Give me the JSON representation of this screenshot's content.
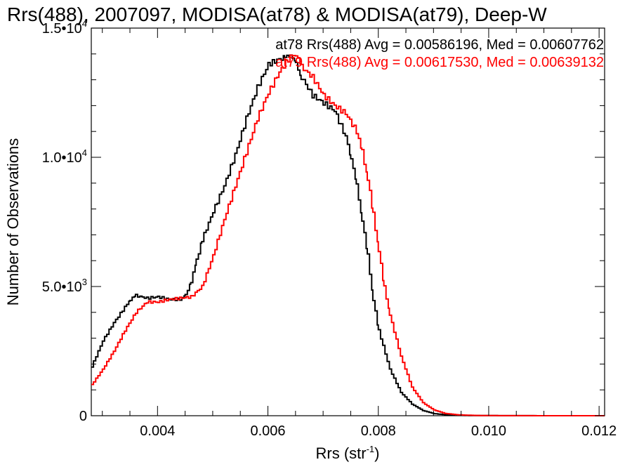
{
  "chart_data": {
    "type": "line",
    "title": "Rrs(488), 2007097, MODISA(at78) & MODISA(at79), Deep-W",
    "xlabel_main": "Rrs (str",
    "xlabel_sup": "-1",
    "xlabel_close": ")",
    "ylabel": "Number of Observations",
    "xlim": [
      0.0028,
      0.0121
    ],
    "ylim": [
      0,
      15000
    ],
    "x_ticks": [
      {
        "value": 0.004,
        "label": "0.004"
      },
      {
        "value": 0.006,
        "label": "0.006"
      },
      {
        "value": 0.008,
        "label": "0.008"
      },
      {
        "value": 0.01,
        "label": "0.010"
      },
      {
        "value": 0.012,
        "label": "0.012"
      }
    ],
    "y_ticks": [
      {
        "value": 0,
        "mant": "0",
        "exp": ""
      },
      {
        "value": 5000,
        "mant": "5.0•10",
        "exp": "3"
      },
      {
        "value": 10000,
        "mant": "1.0•10",
        "exp": "4"
      },
      {
        "value": 15000,
        "mant": "1.5•10",
        "exp": "4"
      }
    ],
    "annotations": [
      {
        "text": "at78 Rrs(488) Avg = 0.00586196, Med = 0.00607762",
        "color": "#000000"
      },
      {
        "text": "at79 Rrs(488) Avg = 0.00617530, Med = 0.00639132",
        "color": "#ff0000"
      }
    ],
    "series": [
      {
        "color": "#000000",
        "x": [
          0.0028,
          0.003,
          0.0032,
          0.0034,
          0.0035,
          0.0036,
          0.0038,
          0.004,
          0.0042,
          0.0044,
          0.0045,
          0.0046,
          0.0047,
          0.0048,
          0.005,
          0.0052,
          0.0054,
          0.0056,
          0.0058,
          0.006,
          0.0062,
          0.0063,
          0.0064,
          0.0065,
          0.0066,
          0.0068,
          0.007,
          0.0072,
          0.0074,
          0.0075,
          0.0076,
          0.0077,
          0.0078,
          0.0079,
          0.008,
          0.0082,
          0.0084,
          0.0086,
          0.0088,
          0.009,
          0.0092,
          0.0094,
          0.0096,
          0.01,
          0.0105,
          0.011,
          0.0121
        ],
        "y": [
          1900,
          2900,
          3600,
          4200,
          4500,
          4650,
          4550,
          4600,
          4500,
          4500,
          4650,
          5200,
          6000,
          6800,
          7900,
          8900,
          10100,
          11500,
          12700,
          13600,
          13800,
          13850,
          14000,
          13600,
          13100,
          12400,
          12100,
          11800,
          10800,
          10000,
          8900,
          7600,
          6200,
          4500,
          3300,
          1800,
          900,
          450,
          200,
          80,
          40,
          20,
          10,
          5,
          2,
          1,
          0
        ]
      },
      {
        "color": "#ff0000",
        "x": [
          0.0028,
          0.003,
          0.0032,
          0.0034,
          0.0036,
          0.0038,
          0.004,
          0.0042,
          0.0044,
          0.0046,
          0.0048,
          0.005,
          0.0052,
          0.0054,
          0.0056,
          0.0058,
          0.006,
          0.0062,
          0.0064,
          0.0065,
          0.0066,
          0.0068,
          0.007,
          0.0072,
          0.0074,
          0.0076,
          0.0077,
          0.0078,
          0.0079,
          0.008,
          0.0081,
          0.0082,
          0.0084,
          0.0086,
          0.0088,
          0.009,
          0.0092,
          0.0094,
          0.0096,
          0.0098,
          0.01,
          0.0105,
          0.011,
          0.0121
        ],
        "y": [
          1200,
          1800,
          2500,
          3300,
          4000,
          4400,
          4400,
          4500,
          4550,
          4600,
          5000,
          6200,
          7600,
          8900,
          10200,
          11500,
          12500,
          13300,
          13900,
          14000,
          13500,
          13100,
          12400,
          12000,
          11700,
          11000,
          10200,
          9200,
          7800,
          6400,
          5000,
          3900,
          2300,
          1100,
          500,
          220,
          90,
          40,
          20,
          10,
          5,
          2,
          1,
          0
        ]
      }
    ]
  }
}
